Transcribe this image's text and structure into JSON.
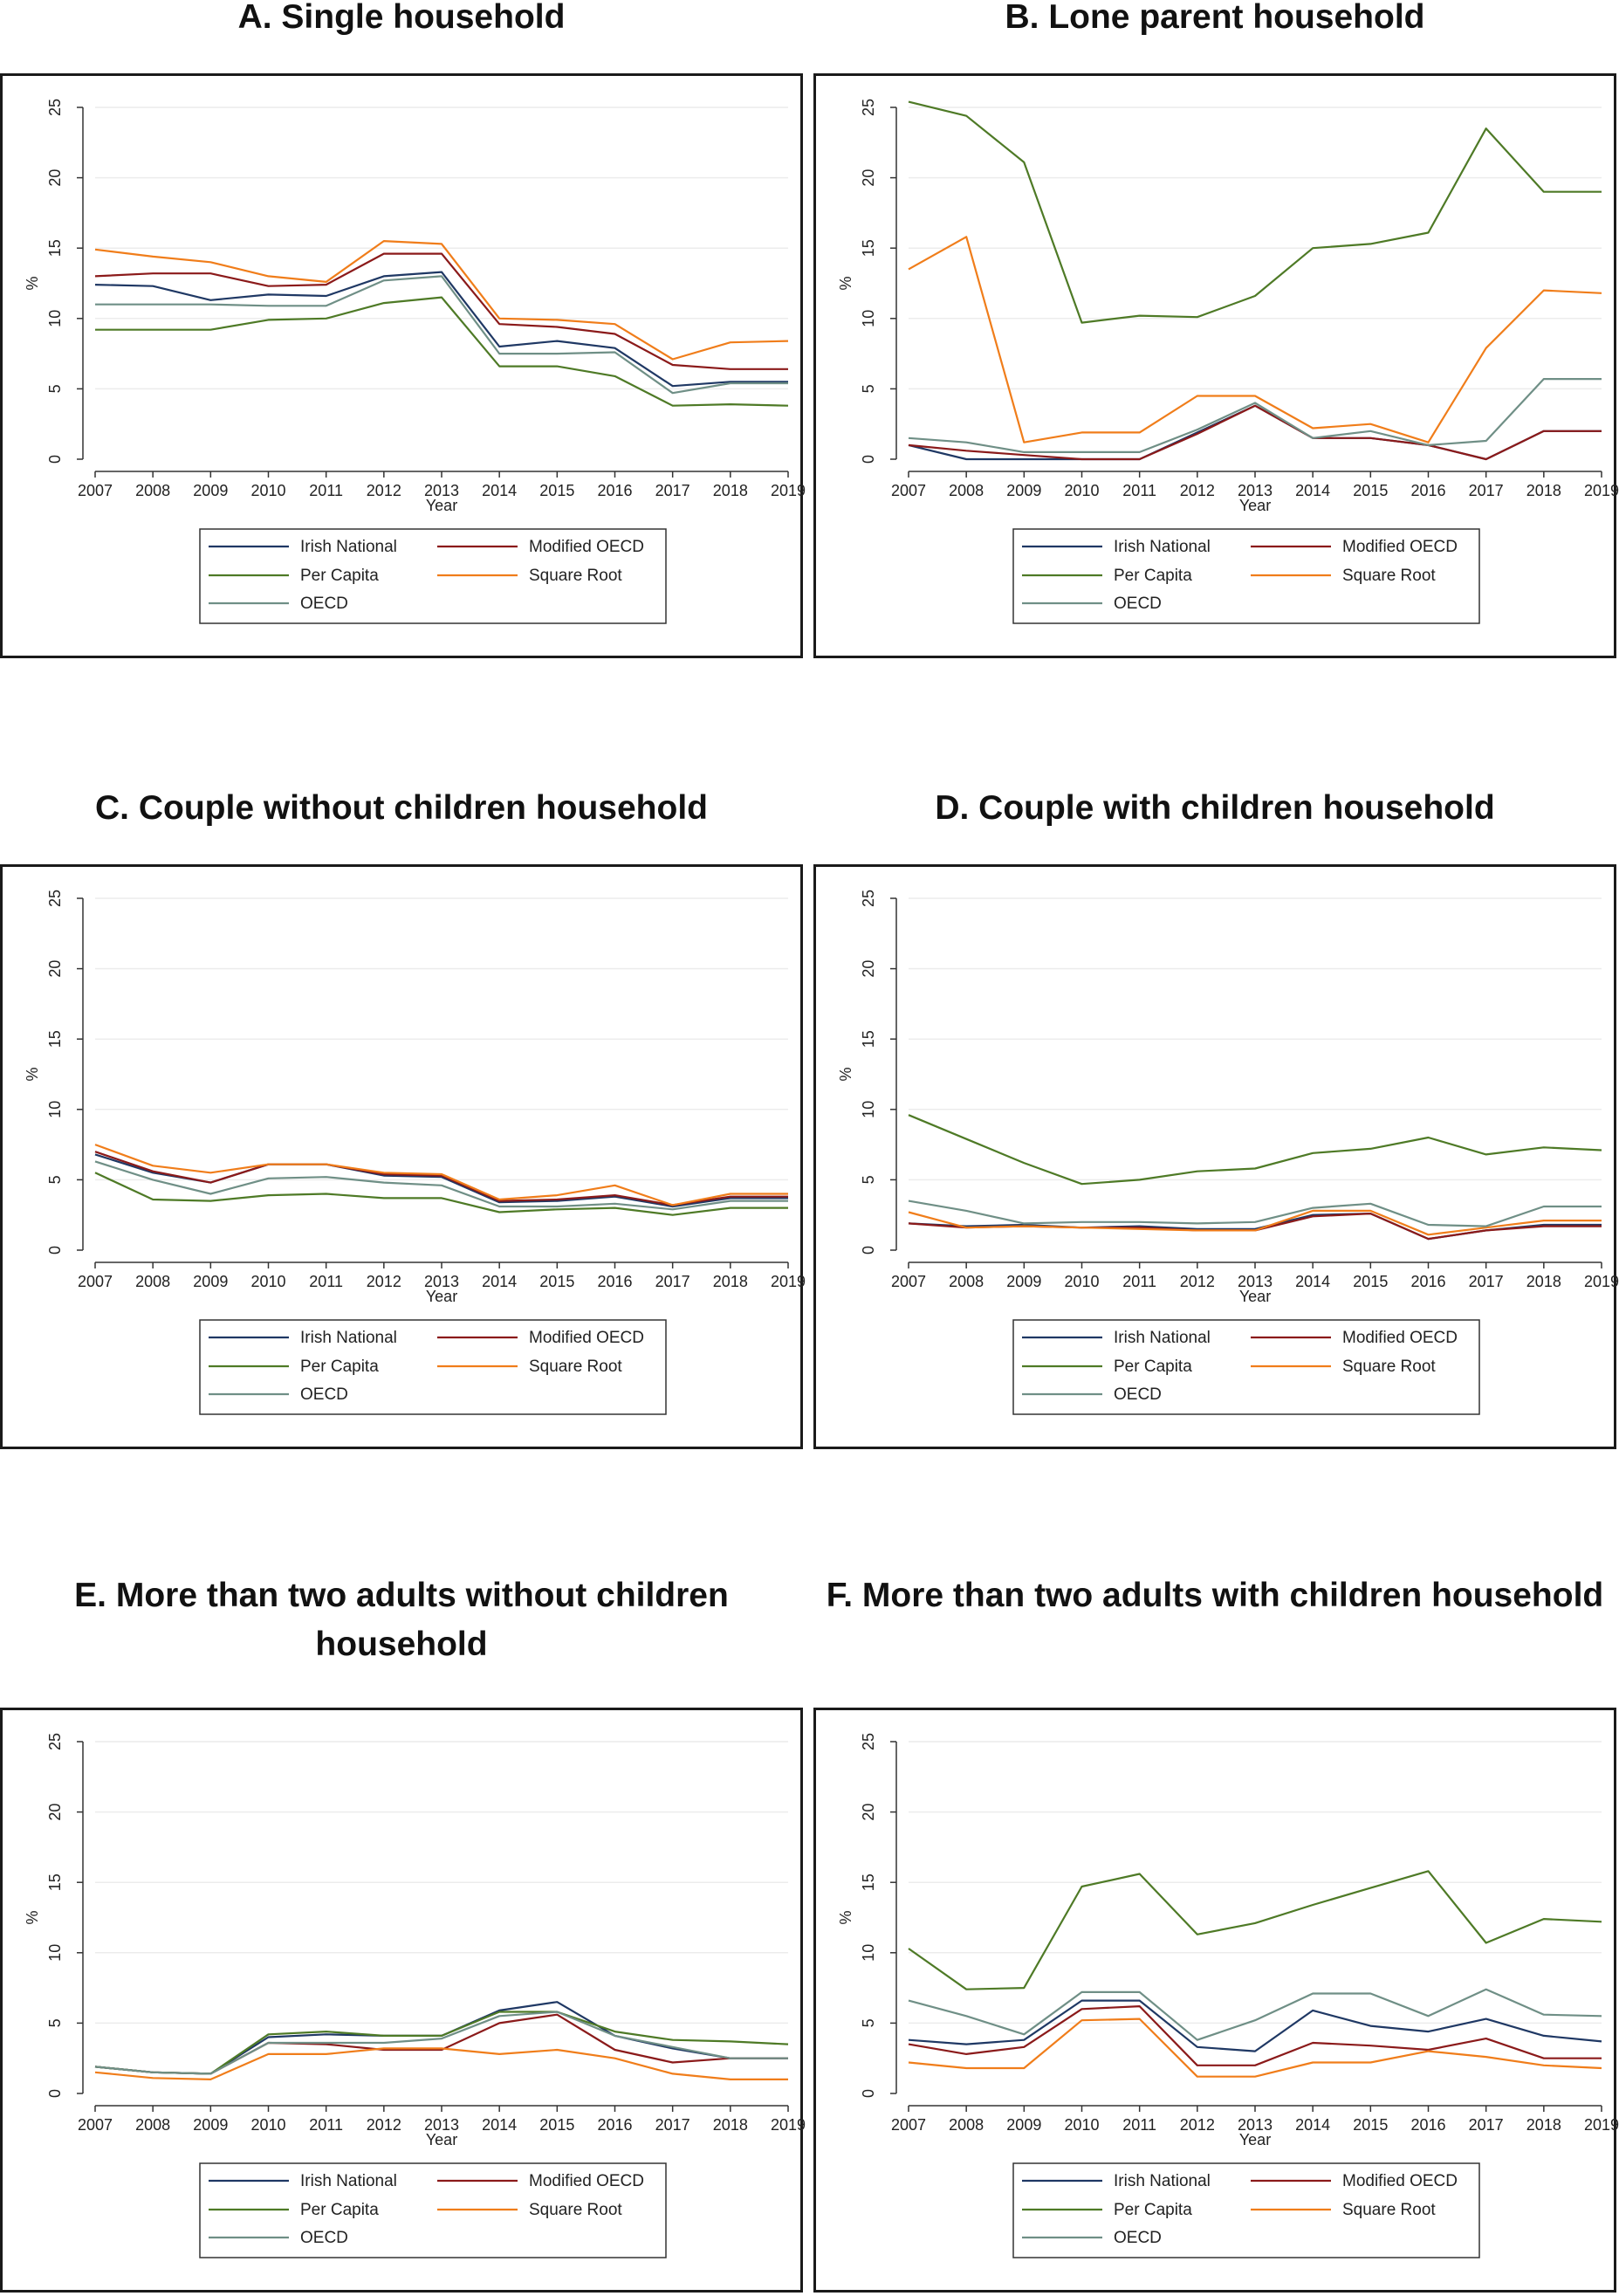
{
  "colors": {
    "Irish National": "#1f3864",
    "Modified OECD": "#8b1a1a",
    "Per Capita": "#4e7a26",
    "Square Root": "#f07d1a",
    "OECD": "#6f8f86"
  },
  "legend_labels": [
    "Irish National",
    "Modified OECD",
    "Per Capita",
    "Square Root",
    "OECD"
  ],
  "chart_data": [
    {
      "type": "line",
      "title": "A. Single household",
      "xlabel": "Year",
      "ylabel": "%",
      "ylim": [
        0,
        25
      ],
      "x": [
        2007,
        2008,
        2009,
        2010,
        2011,
        2012,
        2013,
        2014,
        2015,
        2016,
        2017,
        2018,
        2019
      ],
      "series": [
        {
          "name": "Irish National",
          "values": [
            12.4,
            12.3,
            11.3,
            11.7,
            11.6,
            13.0,
            13.3,
            8.0,
            8.4,
            7.9,
            5.2,
            5.5,
            5.5
          ]
        },
        {
          "name": "Modified OECD",
          "values": [
            13.0,
            13.2,
            13.2,
            12.3,
            12.4,
            14.6,
            14.6,
            9.6,
            9.4,
            8.9,
            6.7,
            6.4,
            6.4
          ]
        },
        {
          "name": "Per Capita",
          "values": [
            9.2,
            9.2,
            9.2,
            9.9,
            10.0,
            11.1,
            11.5,
            6.6,
            6.6,
            5.9,
            3.8,
            3.9,
            3.8
          ]
        },
        {
          "name": "Square Root",
          "values": [
            14.9,
            14.4,
            14.0,
            13.0,
            12.6,
            15.5,
            15.3,
            10.0,
            9.9,
            9.6,
            7.1,
            8.3,
            8.4
          ]
        },
        {
          "name": "OECD",
          "values": [
            11.0,
            11.0,
            11.0,
            10.9,
            10.9,
            12.7,
            13.0,
            7.5,
            7.5,
            7.6,
            4.7,
            5.4,
            5.4
          ]
        }
      ]
    },
    {
      "type": "line",
      "title": "B. Lone parent household",
      "xlabel": "Year",
      "ylabel": "%",
      "ylim": [
        0,
        25
      ],
      "x": [
        2007,
        2008,
        2009,
        2010,
        2011,
        2012,
        2013,
        2014,
        2015,
        2016,
        2017,
        2018,
        2019
      ],
      "series": [
        {
          "name": "Irish National",
          "values": [
            1.0,
            0.0,
            0.0,
            0.0,
            0.0,
            1.9,
            3.8,
            1.5,
            1.5,
            1.0,
            0.0,
            2.0,
            2.0
          ]
        },
        {
          "name": "Modified OECD",
          "values": [
            1.0,
            0.6,
            0.3,
            0.0,
            0.0,
            1.8,
            3.8,
            1.5,
            1.5,
            1.0,
            0.0,
            2.0,
            2.0
          ]
        },
        {
          "name": "Per Capita",
          "values": [
            25.4,
            24.4,
            21.1,
            9.7,
            10.2,
            10.1,
            11.6,
            15.0,
            15.3,
            16.1,
            23.5,
            19.0,
            19.0
          ]
        },
        {
          "name": "Square Root",
          "values": [
            13.5,
            15.8,
            1.2,
            1.9,
            1.9,
            4.5,
            4.5,
            2.2,
            2.5,
            1.2,
            7.9,
            12.0,
            11.8
          ]
        },
        {
          "name": "OECD",
          "values": [
            1.5,
            1.2,
            0.5,
            0.5,
            0.5,
            2.1,
            4.0,
            1.5,
            2.0,
            1.0,
            1.3,
            5.7,
            5.7
          ]
        }
      ]
    },
    {
      "type": "line",
      "title": "C. Couple without children household",
      "xlabel": "Year",
      "ylabel": "%",
      "ylim": [
        0,
        25
      ],
      "x": [
        2007,
        2008,
        2009,
        2010,
        2011,
        2012,
        2013,
        2014,
        2015,
        2016,
        2017,
        2018,
        2019
      ],
      "series": [
        {
          "name": "Irish National",
          "values": [
            6.8,
            5.5,
            4.8,
            6.1,
            6.1,
            5.3,
            5.2,
            3.4,
            3.5,
            3.8,
            3.1,
            3.7,
            3.7
          ]
        },
        {
          "name": "Modified OECD",
          "values": [
            7.0,
            5.6,
            4.8,
            6.1,
            6.1,
            5.4,
            5.3,
            3.5,
            3.6,
            3.9,
            3.2,
            3.8,
            3.8
          ]
        },
        {
          "name": "Per Capita",
          "values": [
            5.5,
            3.6,
            3.5,
            3.9,
            4.0,
            3.7,
            3.7,
            2.7,
            2.9,
            3.0,
            2.5,
            3.0,
            3.0
          ]
        },
        {
          "name": "Square Root",
          "values": [
            7.5,
            6.0,
            5.5,
            6.1,
            6.1,
            5.5,
            5.4,
            3.6,
            3.9,
            4.6,
            3.2,
            4.0,
            4.0
          ]
        },
        {
          "name": "OECD",
          "values": [
            6.3,
            5.0,
            4.0,
            5.1,
            5.2,
            4.8,
            4.6,
            3.1,
            3.1,
            3.3,
            2.9,
            3.5,
            3.5
          ]
        }
      ]
    },
    {
      "type": "line",
      "title": "D. Couple with children household",
      "xlabel": "Year",
      "ylabel": "%",
      "ylim": [
        0,
        25
      ],
      "x": [
        2007,
        2008,
        2009,
        2010,
        2011,
        2012,
        2013,
        2014,
        2015,
        2016,
        2017,
        2018,
        2019
      ],
      "series": [
        {
          "name": "Irish National",
          "values": [
            1.9,
            1.7,
            1.8,
            1.6,
            1.7,
            1.5,
            1.5,
            2.5,
            2.6,
            0.8,
            1.4,
            1.8,
            1.8
          ]
        },
        {
          "name": "Modified OECD",
          "values": [
            1.9,
            1.6,
            1.7,
            1.6,
            1.6,
            1.4,
            1.4,
            2.4,
            2.6,
            0.8,
            1.4,
            1.7,
            1.7
          ]
        },
        {
          "name": "Per Capita",
          "values": [
            9.6,
            7.9,
            6.2,
            4.7,
            5.0,
            5.6,
            5.8,
            6.9,
            7.2,
            8.0,
            6.8,
            7.3,
            7.1
          ]
        },
        {
          "name": "Square Root",
          "values": [
            2.7,
            1.6,
            1.7,
            1.6,
            1.5,
            1.4,
            1.4,
            2.8,
            2.8,
            1.1,
            1.6,
            2.1,
            2.1
          ]
        },
        {
          "name": "OECD",
          "values": [
            3.5,
            2.8,
            1.9,
            2.0,
            2.0,
            1.9,
            2.0,
            3.0,
            3.3,
            1.8,
            1.7,
            3.1,
            3.1
          ]
        }
      ]
    },
    {
      "type": "line",
      "title": "E. More than two adults without children household",
      "xlabel": "Year",
      "ylabel": "%",
      "ylim": [
        0,
        25
      ],
      "x": [
        2007,
        2008,
        2009,
        2010,
        2011,
        2012,
        2013,
        2014,
        2015,
        2016,
        2017,
        2018,
        2019
      ],
      "series": [
        {
          "name": "Irish National",
          "values": [
            1.9,
            1.5,
            1.4,
            4.0,
            4.2,
            4.1,
            4.1,
            5.9,
            6.5,
            4.1,
            3.2,
            2.5,
            2.5
          ]
        },
        {
          "name": "Modified OECD",
          "values": [
            1.9,
            1.5,
            1.4,
            3.6,
            3.5,
            3.1,
            3.1,
            5.0,
            5.6,
            3.1,
            2.2,
            2.5,
            2.5
          ]
        },
        {
          "name": "Per Capita",
          "values": [
            1.9,
            1.5,
            1.4,
            4.2,
            4.4,
            4.1,
            4.1,
            5.8,
            5.8,
            4.4,
            3.8,
            3.7,
            3.5
          ]
        },
        {
          "name": "Square Root",
          "values": [
            1.5,
            1.1,
            1.0,
            2.8,
            2.8,
            3.2,
            3.2,
            2.8,
            3.1,
            2.5,
            1.4,
            1.0,
            1.0
          ]
        },
        {
          "name": "OECD",
          "values": [
            1.9,
            1.5,
            1.4,
            3.6,
            3.6,
            3.6,
            3.9,
            5.5,
            5.8,
            4.1,
            3.3,
            2.5,
            2.5
          ]
        }
      ]
    },
    {
      "type": "line",
      "title": "F. More than two adults with children household",
      "xlabel": "Year",
      "ylabel": "%",
      "ylim": [
        0,
        25
      ],
      "x": [
        2007,
        2008,
        2009,
        2010,
        2011,
        2012,
        2013,
        2014,
        2015,
        2016,
        2017,
        2018,
        2019
      ],
      "series": [
        {
          "name": "Irish National",
          "values": [
            3.8,
            3.5,
            3.8,
            6.6,
            6.6,
            3.3,
            3.0,
            5.9,
            4.8,
            4.4,
            5.3,
            4.1,
            3.7
          ]
        },
        {
          "name": "Modified OECD",
          "values": [
            3.5,
            2.8,
            3.3,
            6.0,
            6.2,
            2.0,
            2.0,
            3.6,
            3.4,
            3.1,
            3.9,
            2.5,
            2.5
          ]
        },
        {
          "name": "Per Capita",
          "values": [
            10.3,
            7.4,
            7.5,
            14.7,
            15.6,
            11.3,
            12.1,
            13.4,
            14.6,
            15.8,
            10.7,
            12.4,
            12.2
          ]
        },
        {
          "name": "Square Root",
          "values": [
            2.2,
            1.8,
            1.8,
            5.2,
            5.3,
            1.2,
            1.2,
            2.2,
            2.2,
            3.0,
            2.6,
            2.0,
            1.8
          ]
        },
        {
          "name": "OECD",
          "values": [
            6.6,
            5.5,
            4.2,
            7.2,
            7.2,
            3.8,
            5.2,
            7.1,
            7.1,
            5.5,
            7.4,
            5.6,
            5.5
          ]
        }
      ]
    }
  ]
}
